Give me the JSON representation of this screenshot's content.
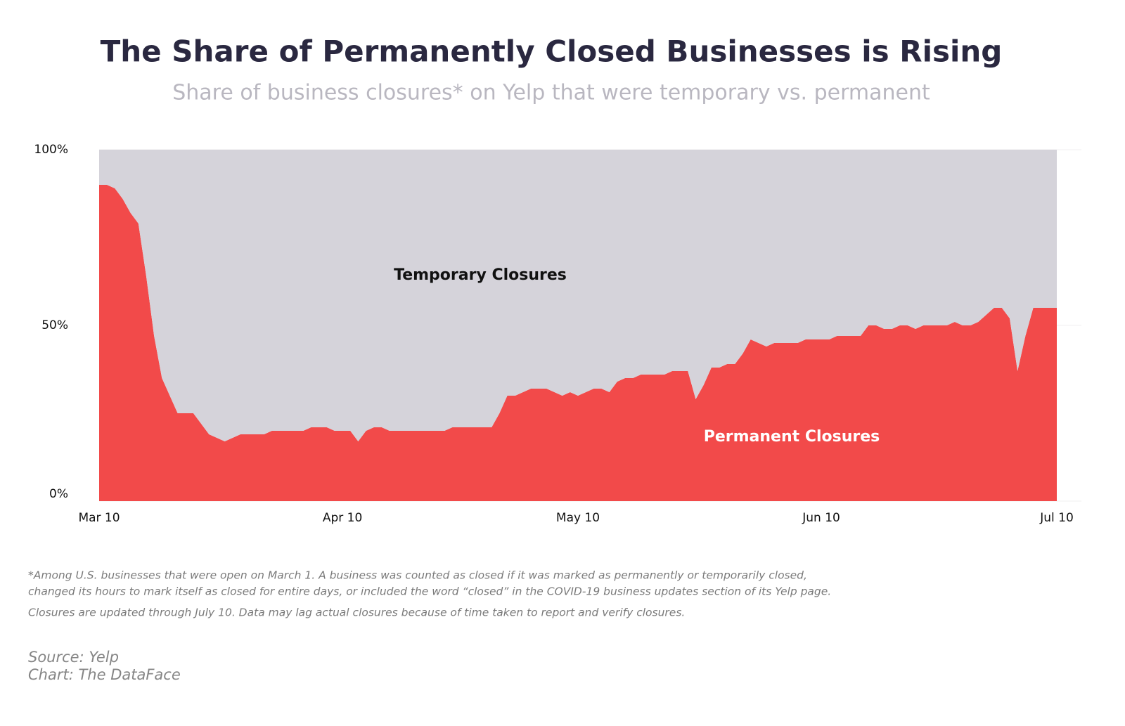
{
  "chart_data": {
    "type": "area",
    "stacked": true,
    "title": "The Share of Permanently Closed Businesses is Rising",
    "subtitle": "Share of business closures* on Yelp that were temporary vs. permanent",
    "x": [
      "Mar 10",
      "Mar 11",
      "Mar 12",
      "Mar 13",
      "Mar 14",
      "Mar 15",
      "Mar 16",
      "Mar 17",
      "Mar 18",
      "Mar 19",
      "Mar 20",
      "Mar 21",
      "Mar 22",
      "Mar 23",
      "Mar 24",
      "Mar 25",
      "Mar 26",
      "Mar 27",
      "Mar 28",
      "Mar 29",
      "Mar 30",
      "Mar 31",
      "Apr 1",
      "Apr 2",
      "Apr 3",
      "Apr 4",
      "Apr 5",
      "Apr 6",
      "Apr 7",
      "Apr 8",
      "Apr 9",
      "Apr 10",
      "Apr 11",
      "Apr 12",
      "Apr 13",
      "Apr 14",
      "Apr 15",
      "Apr 16",
      "Apr 17",
      "Apr 18",
      "Apr 19",
      "Apr 20",
      "Apr 21",
      "Apr 22",
      "Apr 23",
      "Apr 24",
      "Apr 25",
      "Apr 26",
      "Apr 27",
      "Apr 28",
      "Apr 29",
      "Apr 30",
      "May 1",
      "May 2",
      "May 3",
      "May 4",
      "May 5",
      "May 6",
      "May 7",
      "May 8",
      "May 9",
      "May 10",
      "May 11",
      "May 12",
      "May 13",
      "May 14",
      "May 15",
      "May 16",
      "May 17",
      "May 18",
      "May 19",
      "May 20",
      "May 21",
      "May 22",
      "May 23",
      "May 24",
      "May 25",
      "May 26",
      "May 27",
      "May 28",
      "May 29",
      "May 30",
      "May 31",
      "Jun 1",
      "Jun 2",
      "Jun 3",
      "Jun 4",
      "Jun 5",
      "Jun 6",
      "Jun 7",
      "Jun 8",
      "Jun 9",
      "Jun 10",
      "Jun 11",
      "Jun 12",
      "Jun 13",
      "Jun 14",
      "Jun 15",
      "Jun 16",
      "Jun 17",
      "Jun 18",
      "Jun 19",
      "Jun 20",
      "Jun 21",
      "Jun 22",
      "Jun 23",
      "Jun 24",
      "Jun 25",
      "Jun 26",
      "Jun 27",
      "Jun 28",
      "Jun 29",
      "Jun 30",
      "Jul 1",
      "Jul 2",
      "Jul 3",
      "Jul 4",
      "Jul 5",
      "Jul 6",
      "Jul 7",
      "Jul 8",
      "Jul 9",
      "Jul 10"
    ],
    "series": [
      {
        "name": "Permanent Closures",
        "color": "#f24a4a",
        "values": [
          90,
          90,
          89,
          86,
          82,
          79,
          64,
          47,
          35,
          30,
          25,
          25,
          25,
          22,
          19,
          18,
          17,
          18,
          19,
          19,
          19,
          19,
          20,
          20,
          20,
          20,
          20,
          21,
          21,
          21,
          20,
          20,
          20,
          17,
          20,
          21,
          21,
          20,
          20,
          20,
          20,
          20,
          20,
          20,
          20,
          21,
          21,
          21,
          21,
          21,
          21,
          25,
          30,
          30,
          31,
          32,
          32,
          32,
          31,
          30,
          31,
          30,
          31,
          32,
          32,
          31,
          34,
          35,
          35,
          36,
          36,
          36,
          36,
          37,
          37,
          37,
          29,
          33,
          38,
          38,
          39,
          39,
          42,
          46,
          45,
          44,
          45,
          45,
          45,
          45,
          46,
          46,
          46,
          46,
          47,
          47,
          47,
          47,
          50,
          50,
          49,
          49,
          50,
          50,
          49,
          50,
          50,
          50,
          50,
          51,
          50,
          50,
          51,
          53,
          55,
          55,
          52,
          37,
          47,
          55,
          55,
          55,
          55
        ]
      },
      {
        "name": "Temporary Closures",
        "color": "#d5d3da",
        "values": [
          10,
          10,
          11,
          14,
          18,
          21,
          36,
          53,
          65,
          70,
          75,
          75,
          75,
          78,
          81,
          82,
          83,
          82,
          81,
          81,
          81,
          81,
          80,
          80,
          80,
          80,
          80,
          79,
          79,
          79,
          80,
          80,
          80,
          83,
          80,
          79,
          79,
          80,
          80,
          80,
          80,
          80,
          80,
          80,
          80,
          79,
          79,
          79,
          79,
          79,
          79,
          75,
          70,
          70,
          69,
          68,
          68,
          68,
          69,
          70,
          69,
          70,
          69,
          68,
          68,
          69,
          66,
          65,
          65,
          64,
          64,
          64,
          64,
          63,
          63,
          63,
          71,
          67,
          62,
          62,
          61,
          61,
          58,
          54,
          55,
          56,
          55,
          55,
          55,
          55,
          54,
          54,
          54,
          54,
          53,
          53,
          53,
          53,
          50,
          50,
          51,
          51,
          50,
          50,
          51,
          50,
          50,
          50,
          50,
          49,
          50,
          50,
          49,
          47,
          45,
          45,
          48,
          63,
          53,
          45,
          45,
          45,
          45
        ]
      }
    ],
    "ylim": [
      0,
      100
    ],
    "yticks": [
      {
        "value": 0,
        "label": "0%"
      },
      {
        "value": 50,
        "label": "50%"
      },
      {
        "value": 100,
        "label": "100%"
      }
    ],
    "xticks": [
      "Mar 10",
      "Apr 10",
      "May 10",
      "Jun 10",
      "Jul 10"
    ],
    "grid": true,
    "notes": [
      "*Among U.S. businesses that were open on March 1. A business was counted as closed if it was marked as permanently or temporarily closed,",
      "changed its hours to mark itself as closed for entire days, or included the word “closed” in the COVID-19 business updates section of its Yelp page.",
      "Closures are updated through July 10. Data may lag actual closures because of time taken to report and verify closures."
    ],
    "source": "Source: Yelp",
    "credit": "Chart: The DataFace"
  }
}
